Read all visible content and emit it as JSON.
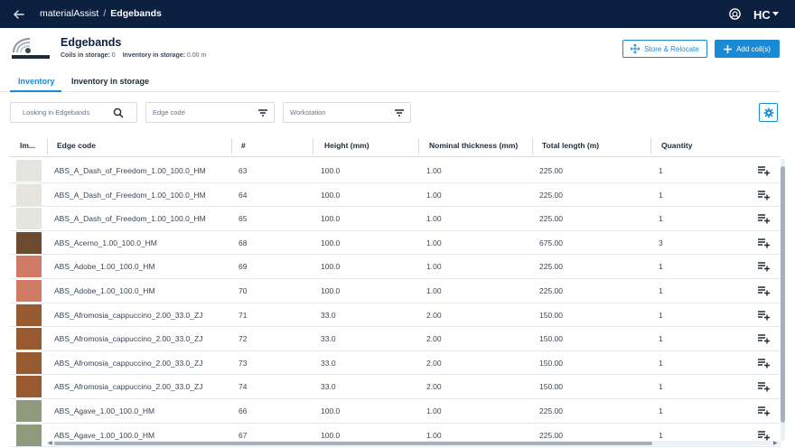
{
  "topbar": {
    "app_name": "materialAssist",
    "separator": "/",
    "current": "Edgebands",
    "back_icon": "arrow-left-icon",
    "help_icon": "help-icon",
    "logo": "HC"
  },
  "header": {
    "title": "Edgebands",
    "coils_label": "Coils in storage:",
    "coils_value": "0",
    "inventory_label": "Inventory in storage:",
    "inventory_value": "0.00 m",
    "store_button": "Store & Relocate",
    "add_button": "Add coil(s)"
  },
  "tabs": [
    {
      "label": "Inventory",
      "active": true
    },
    {
      "label": "Inventory in storage",
      "active": false
    }
  ],
  "filters": {
    "search_placeholder": "Looking in Edgebands",
    "edge_code_placeholder": "Edge code",
    "workstation_placeholder": "Workstation"
  },
  "table": {
    "columns": [
      "Im...",
      "Edge code",
      "#",
      "Height (mm)",
      "Nominal thickness (mm)",
      "Total length (m)",
      "Quantity"
    ],
    "rows": [
      {
        "swatch": "#e6e4de",
        "code": "ABS_A_Dash_of_Freedom_1.00_100.0_HM",
        "num": "63",
        "height": "100.0",
        "thickness": "1.00",
        "length": "225.00",
        "qty": "1"
      },
      {
        "swatch": "#e6e4de",
        "code": "ABS_A_Dash_of_Freedom_1.00_100.0_HM",
        "num": "64",
        "height": "100.0",
        "thickness": "1.00",
        "length": "225.00",
        "qty": "1"
      },
      {
        "swatch": "#e6e4de",
        "code": "ABS_A_Dash_of_Freedom_1.00_100.0_HM",
        "num": "65",
        "height": "100.0",
        "thickness": "1.00",
        "length": "225.00",
        "qty": "1"
      },
      {
        "swatch": "#6b4a30",
        "code": "ABS_Acerno_1.00_100.0_HM",
        "num": "68",
        "height": "100.0",
        "thickness": "1.00",
        "length": "675.00",
        "qty": "3"
      },
      {
        "swatch": "#cf7b66",
        "code": "ABS_Adobe_1.00_100.0_HM",
        "num": "69",
        "height": "100.0",
        "thickness": "1.00",
        "length": "225.00",
        "qty": "1"
      },
      {
        "swatch": "#cf7b66",
        "code": "ABS_Adobe_1.00_100.0_HM",
        "num": "70",
        "height": "100.0",
        "thickness": "1.00",
        "length": "225.00",
        "qty": "1"
      },
      {
        "swatch": "#9a5a30",
        "code": "ABS_Afromosia_cappuccino_2.00_33.0_ZJ",
        "num": "71",
        "height": "33.0",
        "thickness": "2.00",
        "length": "150.00",
        "qty": "1"
      },
      {
        "swatch": "#9a5a30",
        "code": "ABS_Afromosia_cappuccino_2.00_33.0_ZJ",
        "num": "72",
        "height": "33.0",
        "thickness": "2.00",
        "length": "150.00",
        "qty": "1"
      },
      {
        "swatch": "#9a5a30",
        "code": "ABS_Afromosia_cappuccino_2.00_33.0_ZJ",
        "num": "73",
        "height": "33.0",
        "thickness": "2.00",
        "length": "150.00",
        "qty": "1"
      },
      {
        "swatch": "#9a5a30",
        "code": "ABS_Afromosia_cappuccino_2.00_33.0_ZJ",
        "num": "74",
        "height": "33.0",
        "thickness": "2.00",
        "length": "150.00",
        "qty": "1"
      },
      {
        "swatch": "#8f9a7c",
        "code": "ABS_Agave_1.00_100.0_HM",
        "num": "66",
        "height": "100.0",
        "thickness": "1.00",
        "length": "225.00",
        "qty": "1"
      },
      {
        "swatch": "#8f9a7c",
        "code": "ABS_Agave_1.00_100.0_HM",
        "num": "67",
        "height": "100.0",
        "thickness": "1.00",
        "length": "225.00",
        "qty": "1"
      }
    ],
    "row_action_icon": "playlist-add-icon"
  },
  "colors": {
    "topbar": "#0b1f3f",
    "accent": "#1a8ad4"
  }
}
